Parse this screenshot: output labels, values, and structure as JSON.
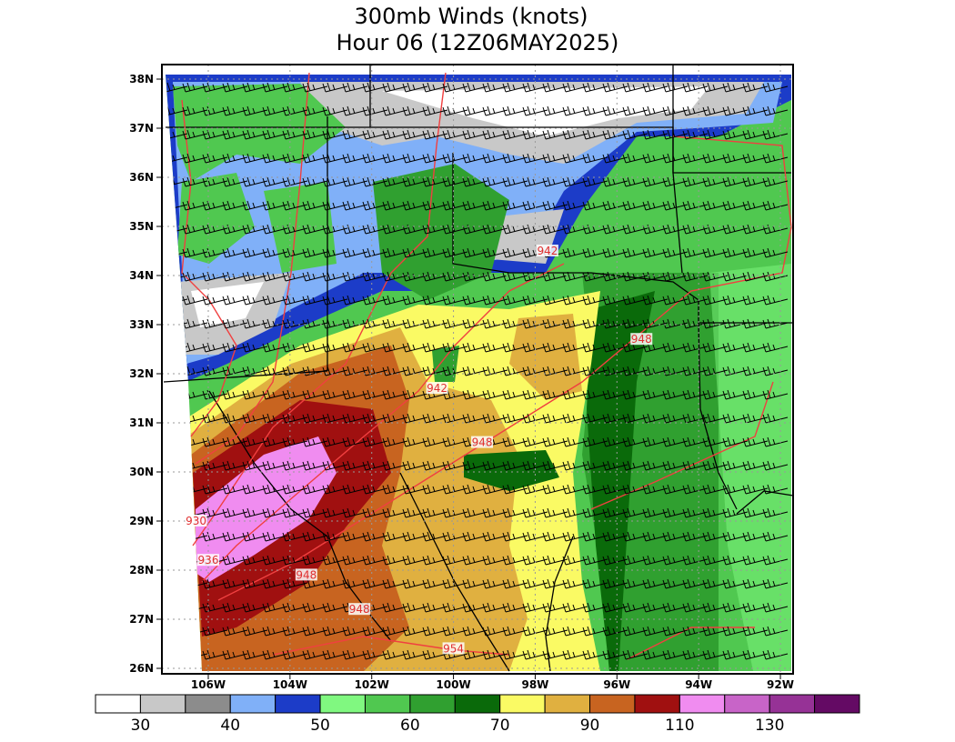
{
  "map": {
    "title": [
      "300mb Winds (knots)",
      "Hour 06 (12Z06MAY2025)"
    ],
    "lat_ticks": [
      {
        "value": 38,
        "label": "38N"
      },
      {
        "value": 37,
        "label": "37N"
      },
      {
        "value": 36,
        "label": "36N"
      },
      {
        "value": 35,
        "label": "35N"
      },
      {
        "value": 34,
        "label": "34N"
      },
      {
        "value": 33,
        "label": "33N"
      },
      {
        "value": 32,
        "label": "32N"
      },
      {
        "value": 31,
        "label": "31N"
      },
      {
        "value": 30,
        "label": "30N"
      },
      {
        "value": 29,
        "label": "29N"
      },
      {
        "value": 28,
        "label": "28N"
      },
      {
        "value": 27,
        "label": "27N"
      },
      {
        "value": 26,
        "label": "26N"
      }
    ],
    "lon_ticks": [
      {
        "value": -106,
        "label": "106W"
      },
      {
        "value": -104,
        "label": "104W"
      },
      {
        "value": -102,
        "label": "102W"
      },
      {
        "value": -100,
        "label": "100W"
      },
      {
        "value": -98,
        "label": "98W"
      },
      {
        "value": -96,
        "label": "96W"
      },
      {
        "value": -94,
        "label": "94W"
      },
      {
        "value": -92,
        "label": "92W"
      }
    ],
    "contour_labels": [
      {
        "text": "942",
        "lon": -97.7,
        "lat": 34.5
      },
      {
        "text": "948",
        "lon": -95.4,
        "lat": 32.7
      },
      {
        "text": "942",
        "lon": -100.4,
        "lat": 31.7
      },
      {
        "text": "948",
        "lon": -99.3,
        "lat": 30.6
      },
      {
        "text": "930",
        "lon": -106.3,
        "lat": 29.0
      },
      {
        "text": "936",
        "lon": -106.0,
        "lat": 28.2
      },
      {
        "text": "948",
        "lon": -103.6,
        "lat": 27.9
      },
      {
        "text": "948",
        "lon": -102.3,
        "lat": 27.2
      },
      {
        "text": "954",
        "lon": -100.0,
        "lat": 26.4
      }
    ],
    "colorbar": {
      "colors": [
        "#ffffff",
        "#c8c8c8",
        "#8c8c8c",
        "#80b0f8",
        "#1c3cc8",
        "#80f880",
        "#50c850",
        "#30a030",
        "#0a6a0a",
        "#fafa64",
        "#e0b040",
        "#c86420",
        "#a01010",
        "#f08cf0",
        "#c864c8",
        "#963296",
        "#640a64"
      ],
      "labels": [
        30,
        40,
        50,
        60,
        70,
        90,
        110,
        130
      ]
    }
  }
}
